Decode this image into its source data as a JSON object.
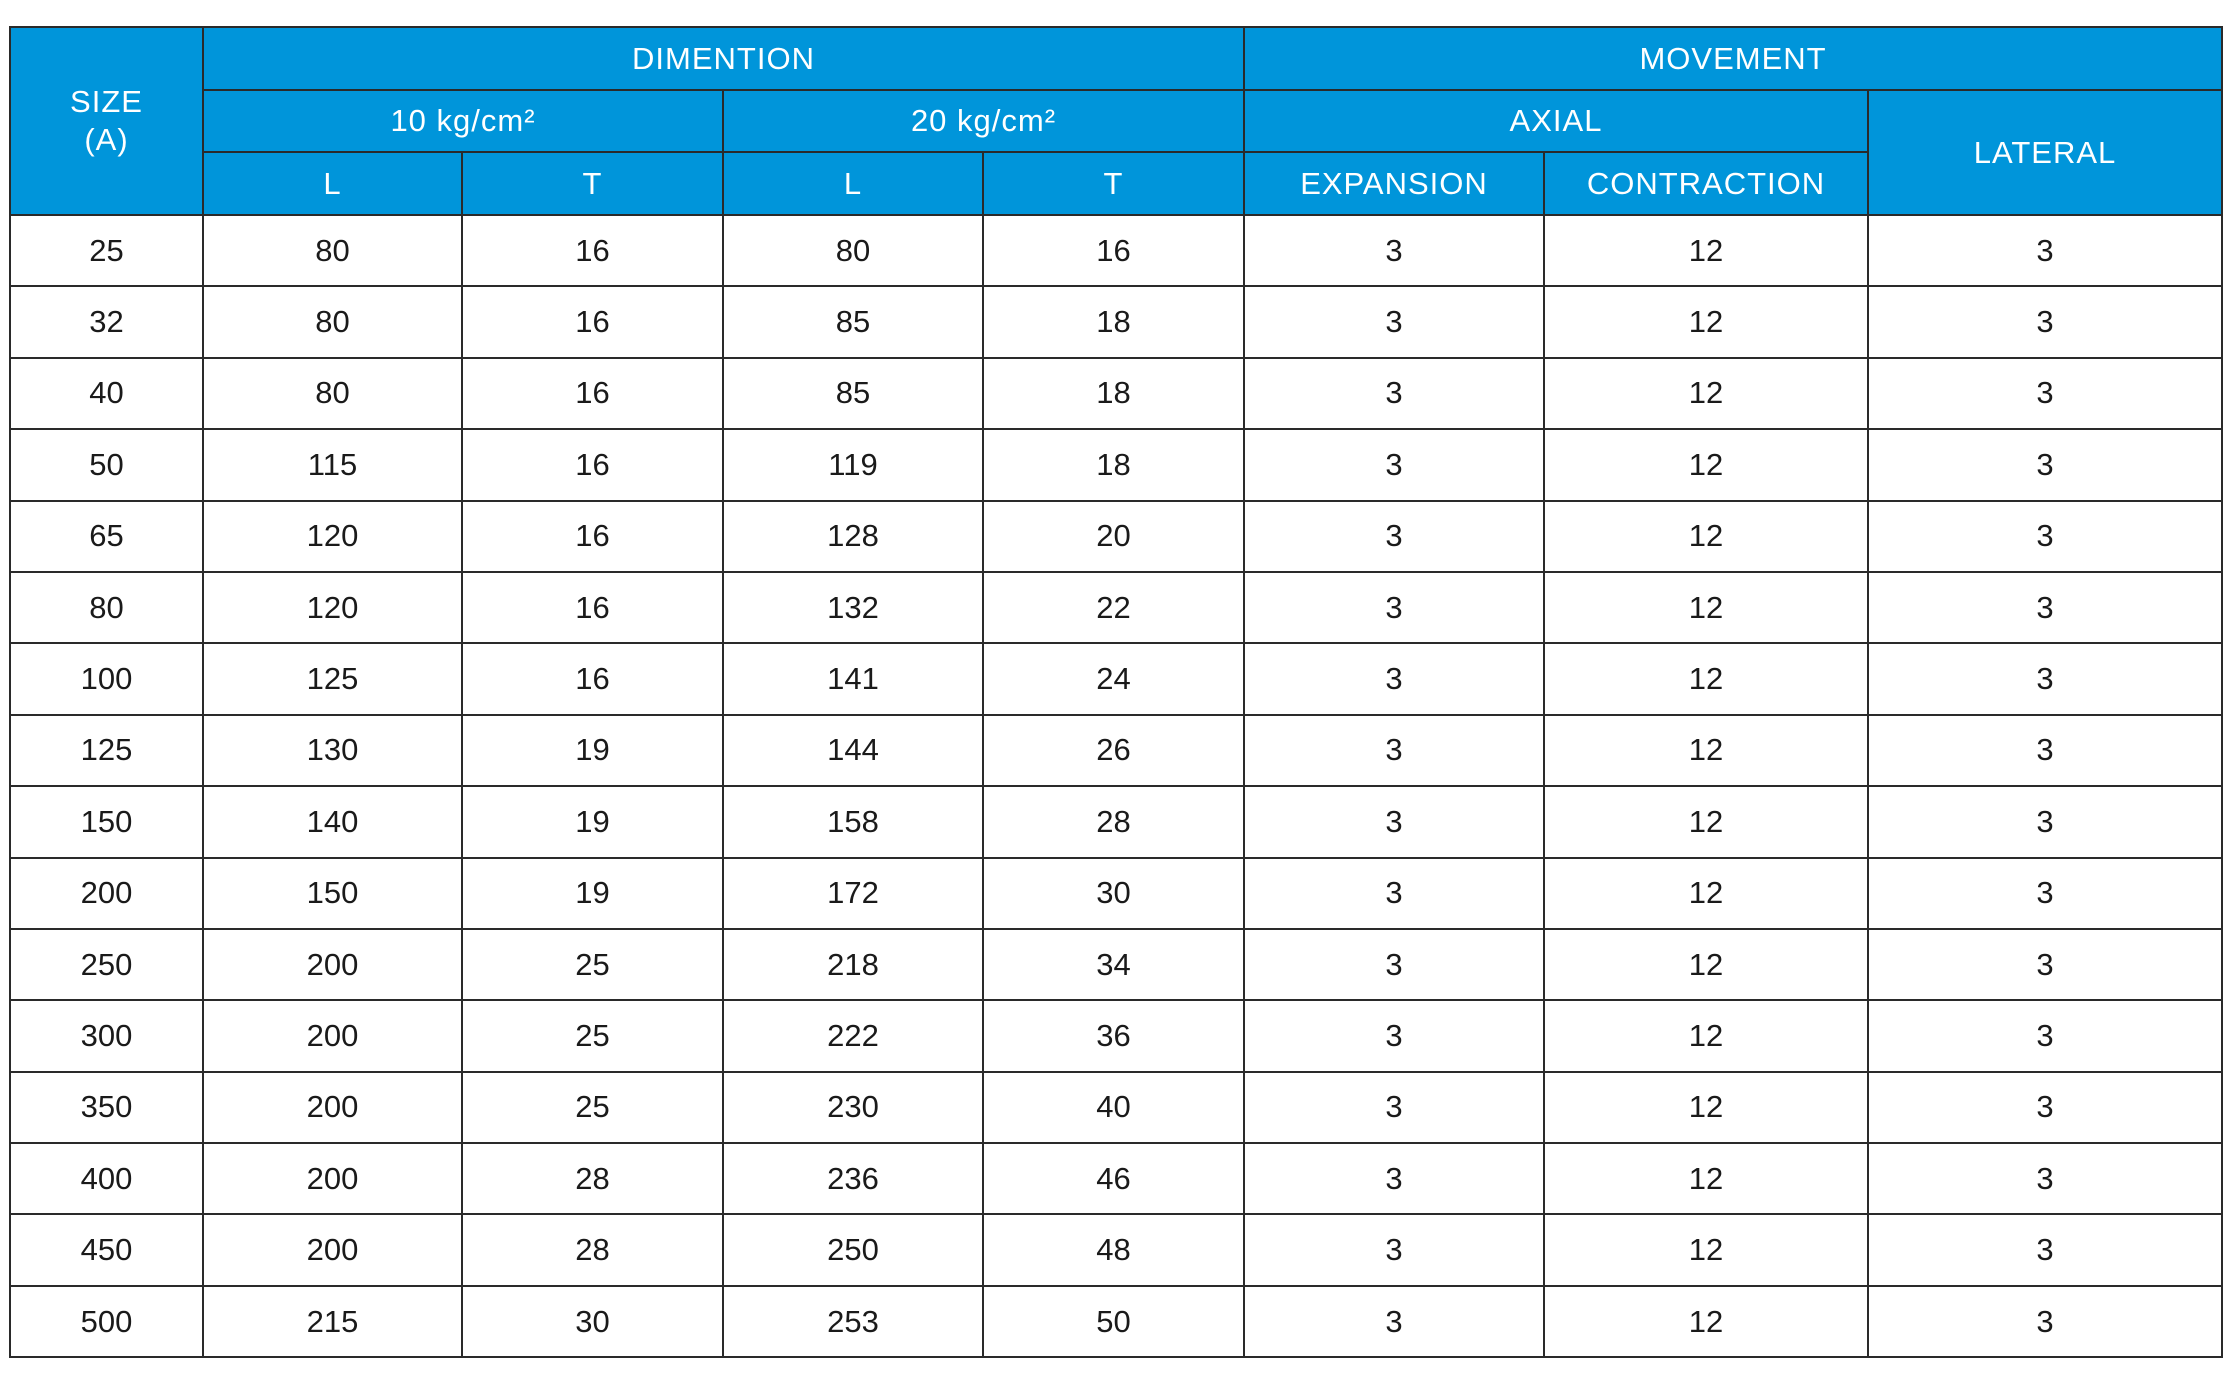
{
  "header": {
    "size": [
      "SIZE",
      "(A)"
    ],
    "dimention": "DIMENTION",
    "movement": "MOVEMENT",
    "pressure_10": "10 kg/cm²",
    "pressure_20": "20 kg/cm²",
    "axial": "AXIAL",
    "lateral": "LATERAL",
    "dimension_columns": [
      "L",
      "T",
      "L",
      "T"
    ],
    "expansion": "EXPANSION",
    "contraction": "CONTRACTION"
  },
  "table": {
    "rows": [
      [
        25,
        80,
        16,
        80,
        16,
        3,
        12,
        3
      ],
      [
        32,
        80,
        16,
        85,
        18,
        3,
        12,
        3
      ],
      [
        40,
        80,
        16,
        85,
        18,
        3,
        12,
        3
      ],
      [
        50,
        115,
        16,
        119,
        18,
        3,
        12,
        3
      ],
      [
        65,
        120,
        16,
        128,
        20,
        3,
        12,
        3
      ],
      [
        80,
        120,
        16,
        132,
        22,
        3,
        12,
        3
      ],
      [
        100,
        125,
        16,
        141,
        24,
        3,
        12,
        3
      ],
      [
        125,
        130,
        19,
        144,
        26,
        3,
        12,
        3
      ],
      [
        150,
        140,
        19,
        158,
        28,
        3,
        12,
        3
      ],
      [
        200,
        150,
        19,
        172,
        30,
        3,
        12,
        3
      ],
      [
        250,
        200,
        25,
        218,
        34,
        3,
        12,
        3
      ],
      [
        300,
        200,
        25,
        222,
        36,
        3,
        12,
        3
      ],
      [
        350,
        200,
        25,
        230,
        40,
        3,
        12,
        3
      ],
      [
        400,
        200,
        28,
        236,
        46,
        3,
        12,
        3
      ],
      [
        450,
        200,
        28,
        250,
        48,
        3,
        12,
        3
      ],
      [
        500,
        215,
        30,
        253,
        50,
        3,
        12,
        3
      ]
    ]
  }
}
